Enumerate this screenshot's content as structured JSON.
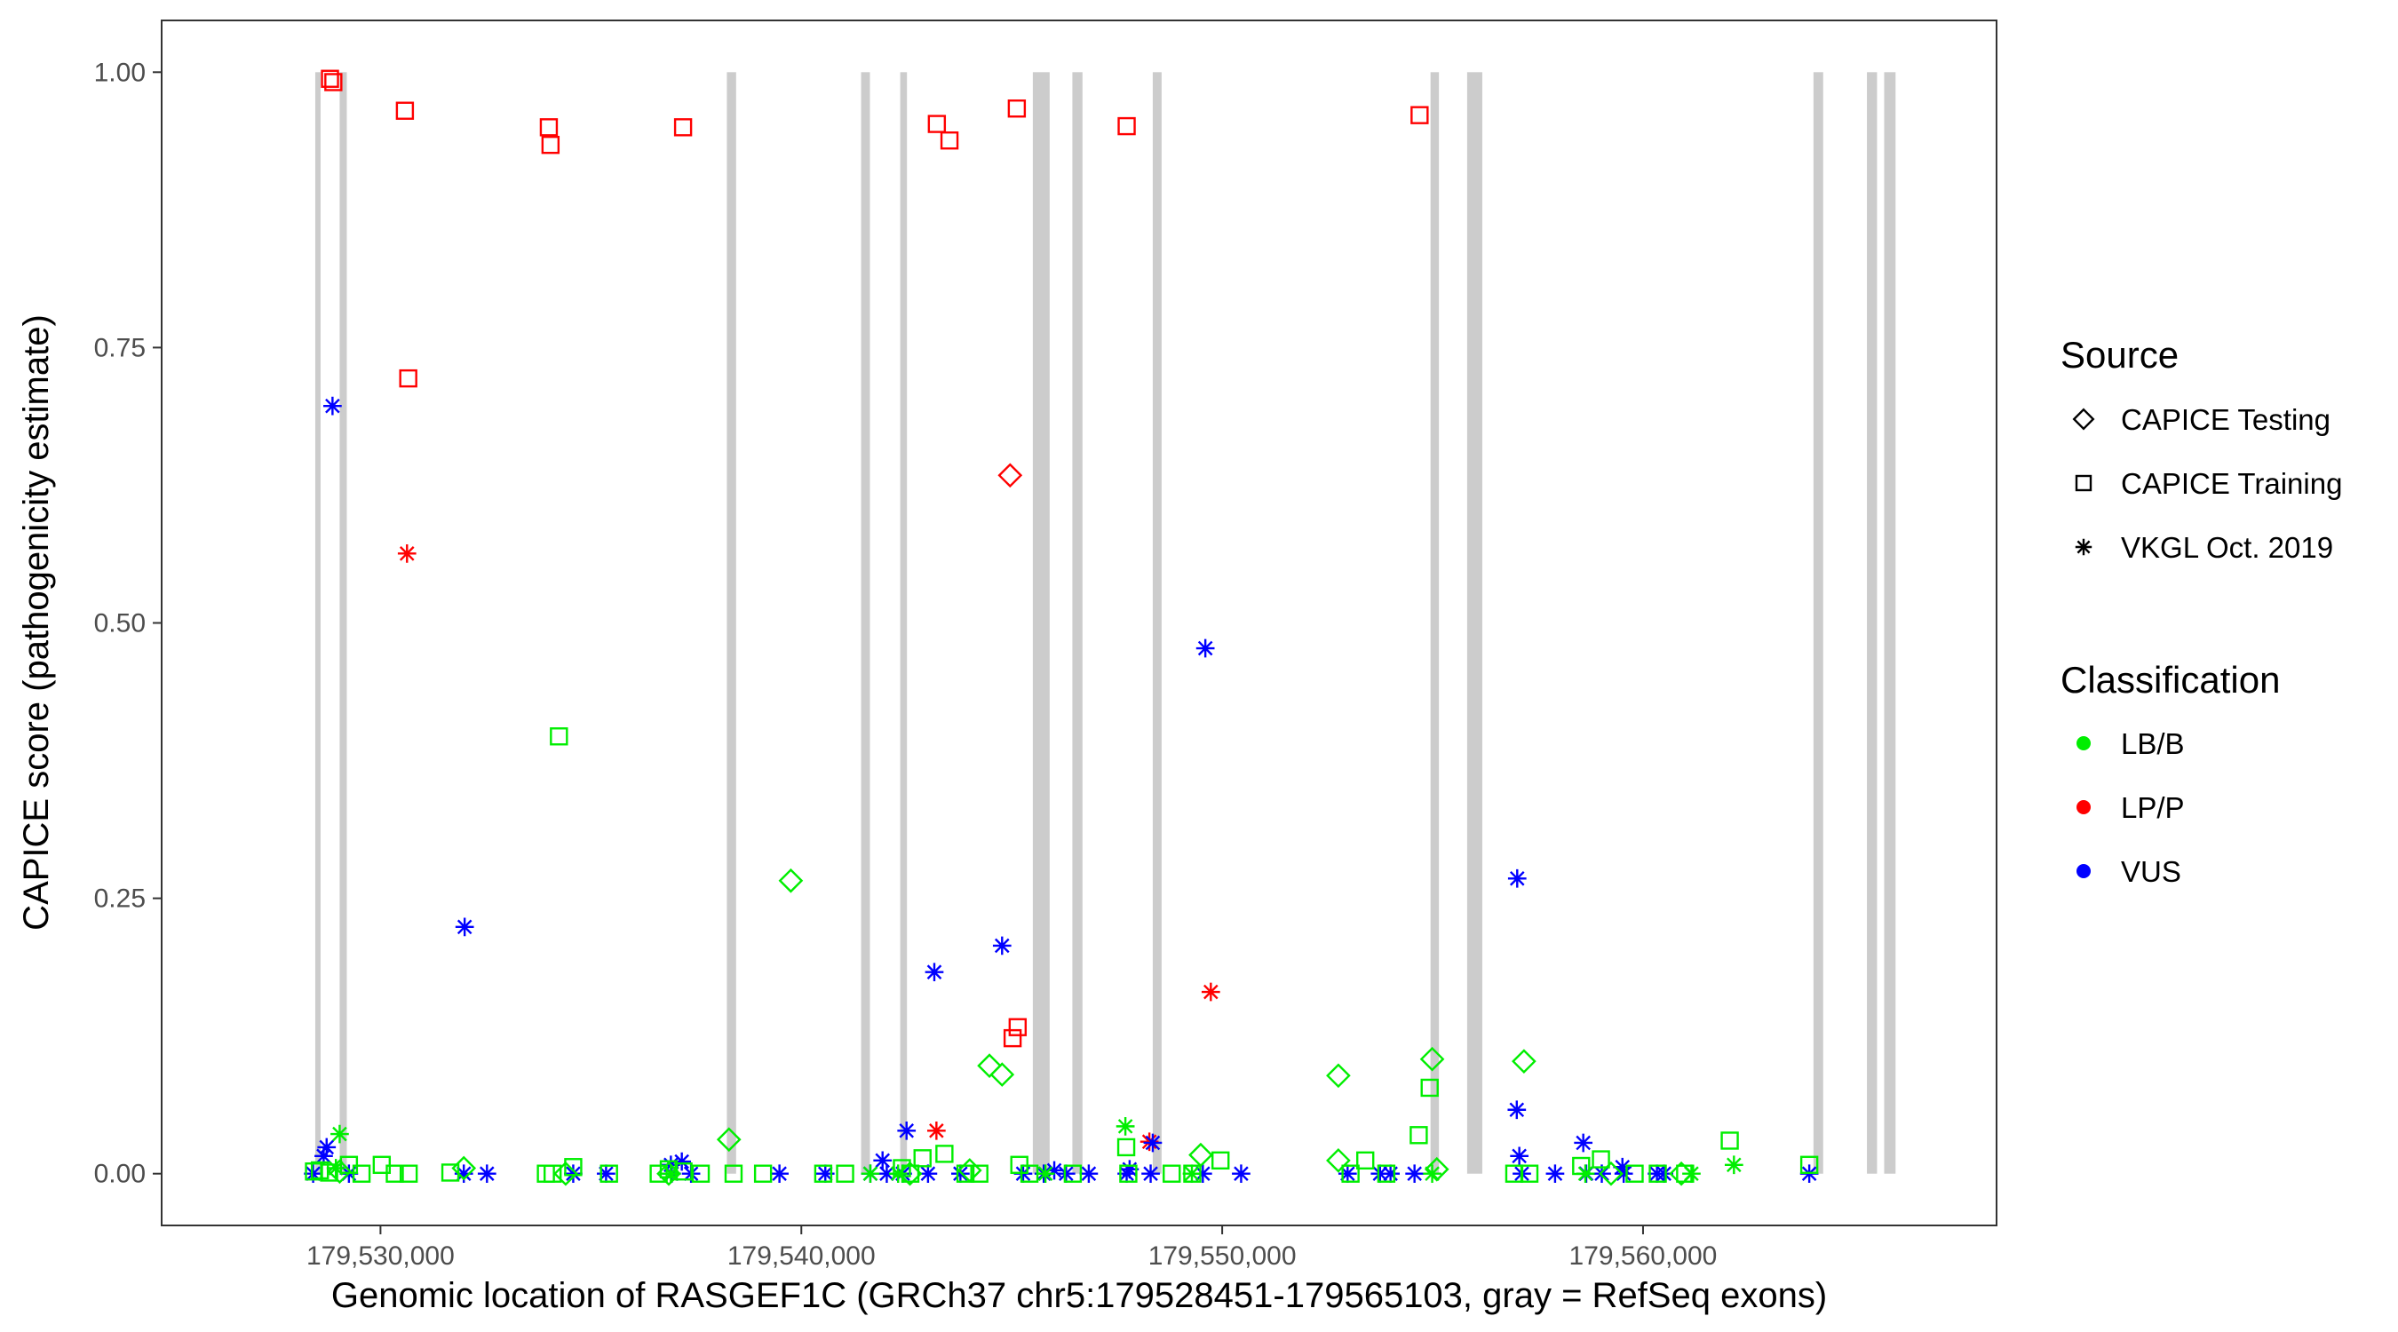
{
  "chart_data": {
    "type": "scatter",
    "title": "",
    "xlabel": "Genomic location of RASGEF1C (GRCh37 chr5:179528451-179565103, gray = RefSeq exons)",
    "ylabel": "CAPICE score (pathogenicity estimate)",
    "xlim": [
      179524800,
      179568400
    ],
    "ylim": [
      -0.047,
      1.047
    ],
    "x_ticks": [
      {
        "value": 179530000,
        "label": "179,530,000"
      },
      {
        "value": 179540000,
        "label": "179,540,000"
      },
      {
        "value": 179550000,
        "label": "179,550,000"
      },
      {
        "value": 179560000,
        "label": "179,560,000"
      }
    ],
    "y_ticks": [
      {
        "value": 0.0,
        "label": "0.00"
      },
      {
        "value": 0.25,
        "label": "0.25"
      },
      {
        "value": 0.5,
        "label": "0.50"
      },
      {
        "value": 0.75,
        "label": "0.75"
      },
      {
        "value": 1.0,
        "label": "1.00"
      }
    ],
    "grid": false,
    "exon_color": "#cccccc",
    "exons": [
      [
        179528450,
        179528560
      ],
      [
        179529030,
        179529200
      ],
      [
        179538230,
        179538450
      ],
      [
        179541420,
        179541630
      ],
      [
        179542350,
        179542510
      ],
      [
        179545500,
        179545900
      ],
      [
        179546440,
        179546680
      ],
      [
        179548350,
        179548560
      ],
      [
        179554950,
        179555150
      ],
      [
        179555820,
        179556180
      ],
      [
        179564050,
        179564280
      ],
      [
        179565320,
        179565560
      ],
      [
        179565730,
        179566000
      ]
    ],
    "legend": {
      "position": "right",
      "source_title": "Source",
      "source_items": [
        {
          "label": "CAPICE Testing",
          "shape": "diamond"
        },
        {
          "label": "CAPICE Training",
          "shape": "square"
        },
        {
          "label": "VKGL Oct. 2019",
          "shape": "asterisk"
        }
      ],
      "class_title": "Classification",
      "class_items": [
        {
          "label": "LB/B",
          "color": "#00ee00"
        },
        {
          "label": "LP/P",
          "color": "#ff0000"
        },
        {
          "label": "VUS",
          "color": "#0000ff"
        }
      ]
    },
    "series": [
      {
        "source": "CAPICE Training",
        "classification": "LP/P",
        "points": [
          [
            179528800,
            0.994
          ],
          [
            179528880,
            0.991
          ],
          [
            179530580,
            0.965
          ],
          [
            179530660,
            0.722
          ],
          [
            179534000,
            0.95
          ],
          [
            179534040,
            0.934
          ],
          [
            179537190,
            0.95
          ],
          [
            179543220,
            0.953
          ],
          [
            179543520,
            0.938
          ],
          [
            179545120,
            0.967
          ],
          [
            179545020,
            0.123
          ],
          [
            179545140,
            0.133
          ],
          [
            179547730,
            0.951
          ],
          [
            179554690,
            0.961
          ]
        ]
      },
      {
        "source": "VKGL Oct. 2019",
        "classification": "LP/P",
        "points": [
          [
            179530630,
            0.563
          ],
          [
            179543210,
            0.039
          ],
          [
            179548270,
            0.029
          ],
          [
            179549730,
            0.165
          ]
        ]
      },
      {
        "source": "CAPICE Testing",
        "classification": "LP/P",
        "points": [
          [
            179544960,
            0.634
          ]
        ]
      },
      {
        "source": "VKGL Oct. 2019",
        "classification": "VUS",
        "points": [
          [
            179528860,
            0.697
          ],
          [
            179532000,
            0.224
          ],
          [
            179543160,
            0.183
          ],
          [
            179544770,
            0.207
          ],
          [
            179549600,
            0.477
          ],
          [
            179557010,
            0.268
          ],
          [
            179557000,
            0.058
          ],
          [
            179528720,
            0.024
          ],
          [
            179528650,
            0.016
          ],
          [
            179542500,
            0.039
          ],
          [
            179541930,
            0.012
          ],
          [
            179536900,
            0.008
          ],
          [
            179537160,
            0.011
          ],
          [
            179557060,
            0.016
          ],
          [
            179558580,
            0.028
          ],
          [
            179559510,
            0.006
          ],
          [
            179546010,
            0.003
          ],
          [
            179547800,
            0.004
          ],
          [
            179548350,
            0.028
          ],
          [
            179528400,
            0.0
          ],
          [
            179529250,
            0.0
          ],
          [
            179531980,
            0.0
          ],
          [
            179532530,
            0.0
          ],
          [
            179534580,
            0.0
          ],
          [
            179535360,
            0.0
          ],
          [
            179536920,
            0.0
          ],
          [
            179537380,
            0.0
          ],
          [
            179539480,
            0.0
          ],
          [
            179540570,
            0.0
          ],
          [
            179541640,
            0.0
          ],
          [
            179542030,
            0.0
          ],
          [
            179542410,
            0.0
          ],
          [
            179543010,
            0.0
          ],
          [
            179543780,
            0.0
          ],
          [
            179545270,
            0.0
          ],
          [
            179545760,
            0.0
          ],
          [
            179546290,
            0.0
          ],
          [
            179546830,
            0.0
          ],
          [
            179547730,
            0.0
          ],
          [
            179548300,
            0.0
          ],
          [
            179549540,
            0.0
          ],
          [
            179550450,
            0.0
          ],
          [
            179552980,
            0.0
          ],
          [
            179553750,
            0.0
          ],
          [
            179554000,
            0.0
          ],
          [
            179554570,
            0.0
          ],
          [
            179557120,
            0.0
          ],
          [
            179557910,
            0.0
          ],
          [
            179558650,
            0.0
          ],
          [
            179559020,
            0.0
          ],
          [
            179559540,
            0.0
          ],
          [
            179560330,
            0.0
          ],
          [
            179560500,
            0.0
          ],
          [
            179563950,
            0.0
          ]
        ]
      },
      {
        "source": "CAPICE Training",
        "classification": "LB/B",
        "points": [
          [
            179534240,
            0.397
          ],
          [
            179528420,
            0.002
          ],
          [
            179528560,
            0.003
          ],
          [
            179528780,
            0.001
          ],
          [
            179529250,
            0.008
          ],
          [
            179529550,
            0.0
          ],
          [
            179530030,
            0.008
          ],
          [
            179530340,
            0.0
          ],
          [
            179530670,
            0.0
          ],
          [
            179531660,
            0.001
          ],
          [
            179533930,
            0.0
          ],
          [
            179534090,
            0.0
          ],
          [
            179534580,
            0.006
          ],
          [
            179535430,
            0.0
          ],
          [
            179536610,
            0.0
          ],
          [
            179536850,
            0.004
          ],
          [
            179537200,
            0.002
          ],
          [
            179537610,
            0.0
          ],
          [
            179538390,
            0.0
          ],
          [
            179539090,
            0.0
          ],
          [
            179540520,
            0.0
          ],
          [
            179541040,
            0.0
          ],
          [
            179542390,
            0.005
          ],
          [
            179542590,
            0.0
          ],
          [
            179542880,
            0.014
          ],
          [
            179543400,
            0.018
          ],
          [
            179543900,
            0.0
          ],
          [
            179544230,
            0.0
          ],
          [
            179545180,
            0.008
          ],
          [
            179545420,
            0.0
          ],
          [
            179546450,
            0.0
          ],
          [
            179547720,
            0.024
          ],
          [
            179547770,
            0.0
          ],
          [
            179548800,
            0.0
          ],
          [
            179549290,
            0.0
          ],
          [
            179549960,
            0.012
          ],
          [
            179553050,
            0.0
          ],
          [
            179553400,
            0.012
          ],
          [
            179553900,
            0.0
          ],
          [
            179554670,
            0.035
          ],
          [
            179554930,
            0.078
          ],
          [
            179556940,
            0.0
          ],
          [
            179557300,
            0.0
          ],
          [
            179558530,
            0.007
          ],
          [
            179559000,
            0.013
          ],
          [
            179559800,
            0.0
          ],
          [
            179560350,
            0.0
          ],
          [
            179561000,
            0.0
          ],
          [
            179562060,
            0.03
          ],
          [
            179563950,
            0.008
          ]
        ]
      },
      {
        "source": "CAPICE Testing",
        "classification": "LB/B",
        "points": [
          [
            179539750,
            0.266
          ],
          [
            179544470,
            0.098
          ],
          [
            179544770,
            0.09
          ],
          [
            179552760,
            0.089
          ],
          [
            179554990,
            0.104
          ],
          [
            179557170,
            0.102
          ],
          [
            179538280,
            0.031
          ],
          [
            179529030,
            0.002
          ],
          [
            179531980,
            0.005
          ],
          [
            179534400,
            0.0
          ],
          [
            179536850,
            0.0
          ],
          [
            179542580,
            0.0
          ],
          [
            179544000,
            0.003
          ],
          [
            179549490,
            0.017
          ],
          [
            179552760,
            0.012
          ],
          [
            179555100,
            0.004
          ],
          [
            179559240,
            0.0
          ],
          [
            179560910,
            0.0
          ]
        ]
      },
      {
        "source": "VKGL Oct. 2019",
        "classification": "LB/B",
        "points": [
          [
            179529030,
            0.036
          ],
          [
            179528940,
            0.005
          ],
          [
            179547700,
            0.043
          ],
          [
            179542300,
            0.0
          ],
          [
            179545800,
            0.0
          ],
          [
            179549280,
            0.0
          ],
          [
            179554990,
            0.0
          ],
          [
            179558630,
            0.0
          ],
          [
            179561150,
            0.0
          ],
          [
            179562160,
            0.008
          ],
          [
            179541640,
            0.0
          ],
          [
            179536900,
            0.0
          ]
        ]
      }
    ]
  }
}
